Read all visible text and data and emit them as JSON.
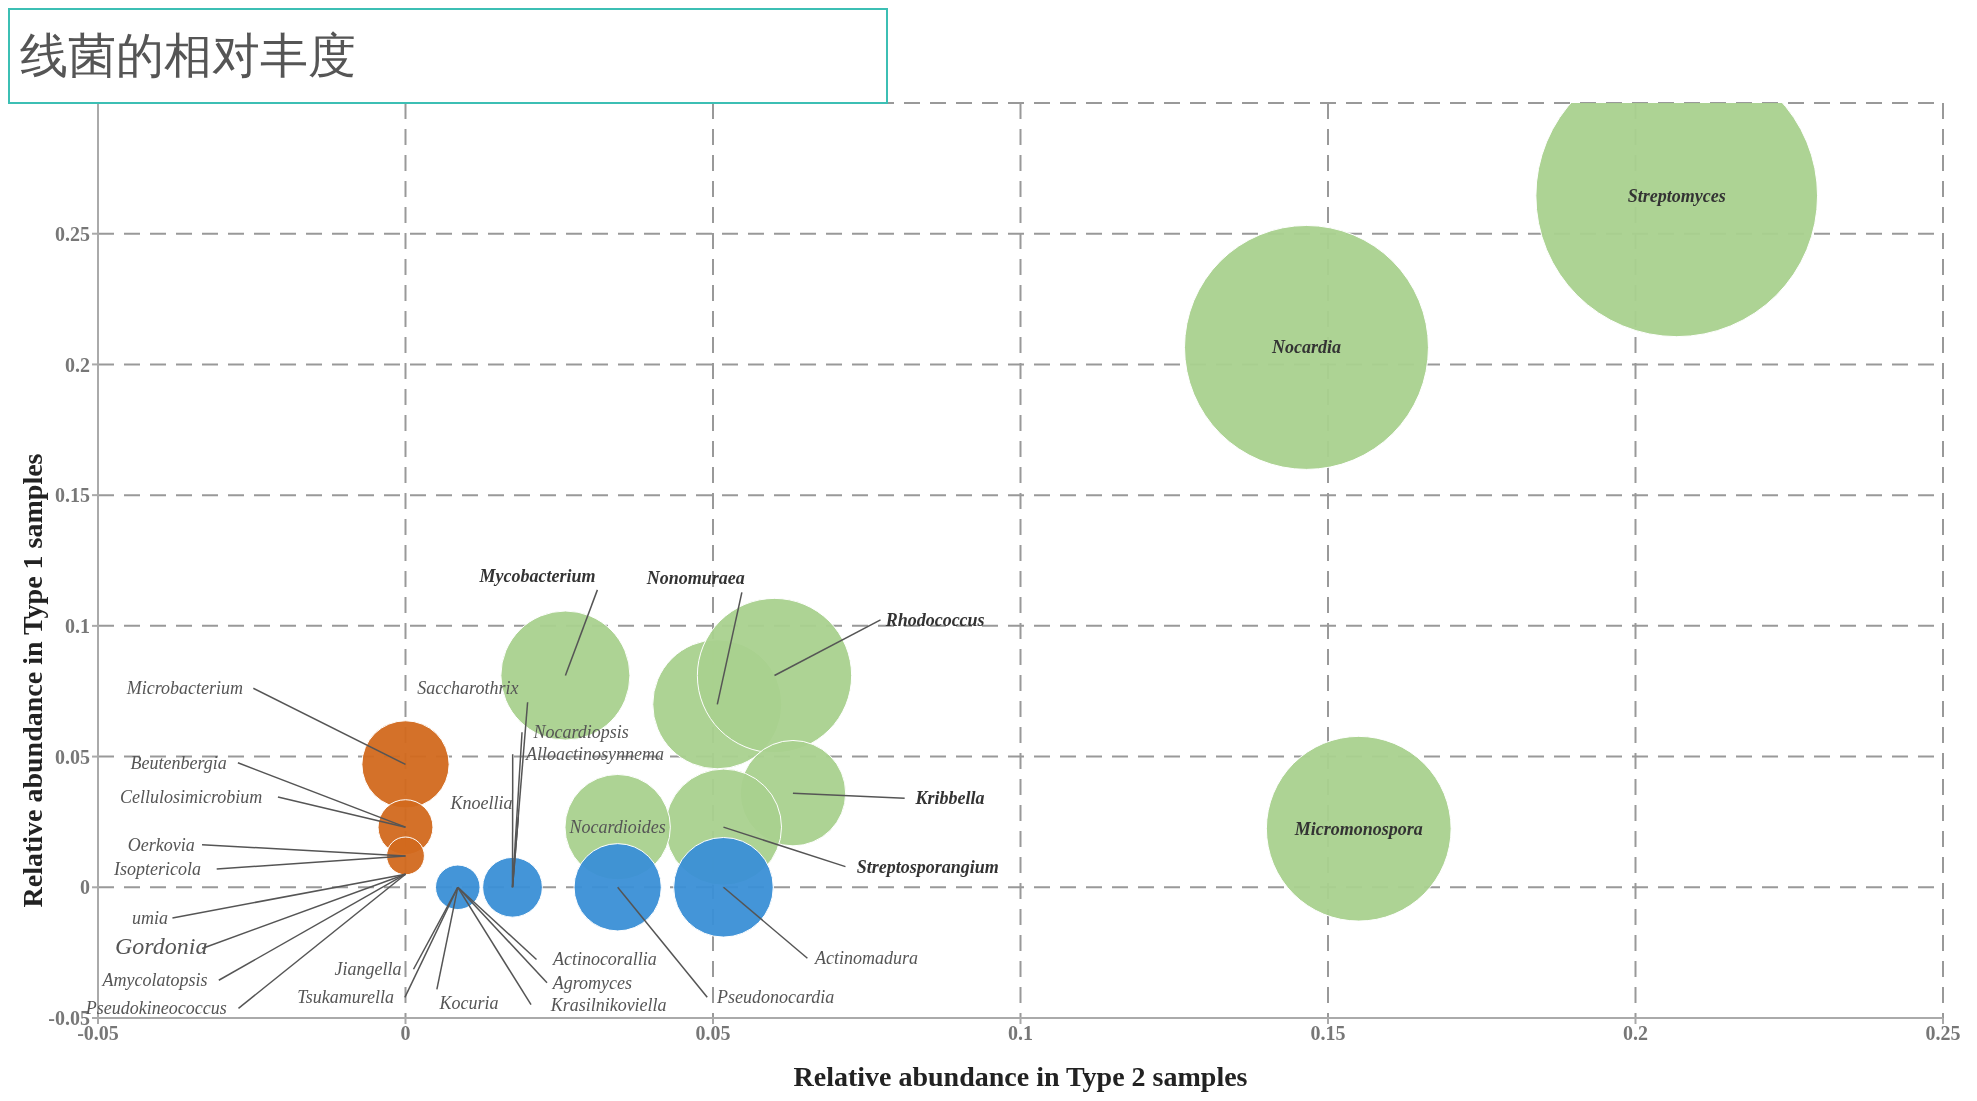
{
  "chart_data": {
    "type": "bubble",
    "title": "线菌的相对丰度",
    "xlabel": "Relative abundance in Type 2 samples",
    "ylabel": "Relative abundance in Type 1 samples",
    "xlim": [
      -0.05,
      0.25
    ],
    "xticks": [
      -0.05,
      0,
      0.05,
      0.1,
      0.15,
      0.2,
      0.25
    ],
    "ylim": [
      -0.05,
      0.3
    ],
    "yticks": [
      -0.05,
      0,
      0.05,
      0.1,
      0.15,
      0.2,
      0.25,
      {
        "value": 0.3,
        "label": null
      }
    ],
    "grid": true,
    "series": [
      {
        "color": "#a9d18e",
        "x": [
          0.2067,
          0.1465,
          0.155,
          0.026,
          0.0507,
          0.06,
          0.063,
          0.0517,
          0.0345
        ],
        "values": [
          0.2645,
          0.2065,
          0.0224,
          0.081,
          0.07,
          0.081,
          0.036,
          0.023,
          0.023
        ],
        "sizes": [
          1,
          0.75,
          0.43,
          0.21,
          0.21,
          0.3,
          0.14,
          0.17,
          0.14
        ]
      },
      {
        "color": "#3a8fd6",
        "x": [
          0.0517,
          0.0345,
          0.0174,
          0.0085
        ],
        "values": [
          0,
          0,
          0,
          0
        ],
        "sizes": [
          0.125,
          0.096,
          0.045,
          0.025
        ]
      },
      {
        "color": "#d2691e",
        "x": [
          0,
          0,
          0
        ],
        "values": [
          0.047,
          0.023,
          0.012
        ],
        "sizes": [
          0.096,
          0.038,
          0.018
        ]
      }
    ],
    "annotations": [
      {
        "text": "Streptomyces",
        "x": 0.2067,
        "y": 0.2645
      },
      {
        "text": "Nocardia",
        "x": 0.1465,
        "y": 0.2065
      },
      {
        "text": "Micromonospora",
        "x": 0.155,
        "y": 0.0224
      },
      {
        "text": "Mycobacterium",
        "x": 0.026,
        "y": 0.081
      },
      {
        "text": "Nonomuraea",
        "x": 0.0507,
        "y": 0.07
      },
      {
        "text": "Rhodococcus",
        "x": 0.06,
        "y": 0.081
      },
      {
        "text": "Kribbella",
        "x": 0.063,
        "y": 0.036
      },
      {
        "text": "Streptosporangium",
        "x": 0.0517,
        "y": 0.023
      },
      {
        "text": "Nocardioides",
        "x": 0.0345,
        "y": 0.023
      },
      {
        "text": "Actinomadura",
        "x": 0.0517,
        "y": 0
      },
      {
        "text": "Pseudonocardia",
        "x": 0.0345,
        "y": 0
      },
      {
        "text": "Saccharothrix",
        "x": 0.0174,
        "y": 0
      },
      {
        "text": "Knoellia",
        "x": 0.0174,
        "y": 0
      },
      {
        "text": "Nocardiopsis",
        "x": 0.0174,
        "y": 0
      },
      {
        "text": "Alloactinosynnema",
        "x": 0.0174,
        "y": 0
      },
      {
        "text": "Jiangella",
        "x": 0.0085,
        "y": 0
      },
      {
        "text": "Tsukamurella",
        "x": 0.0085,
        "y": 0
      },
      {
        "text": "Kocuria",
        "x": 0.0085,
        "y": 0
      },
      {
        "text": "Actinocorallia",
        "x": 0.0085,
        "y": 0
      },
      {
        "text": "Agromyces",
        "x": 0.0085,
        "y": 0
      },
      {
        "text": "Krasilnikoviella",
        "x": 0.0085,
        "y": 0
      },
      {
        "text": "Microbacterium",
        "x": 0,
        "y": 0.047
      },
      {
        "text": "Beutenbergia",
        "x": 0,
        "y": 0.023
      },
      {
        "text": "Cellulosimicrobium",
        "x": 0,
        "y": 0.023
      },
      {
        "text": "Oerkovia",
        "x": 0,
        "y": 0.012
      },
      {
        "text": "Isoptericola",
        "x": 0,
        "y": 0.012
      },
      {
        "text": "umia",
        "x": 0,
        "y": 0.005
      },
      {
        "text": "Gordonia",
        "x": 0,
        "y": 0.005
      },
      {
        "text": "Amycolatopsis",
        "x": 0,
        "y": 0.005
      },
      {
        "text": "Pseudokineococcus",
        "x": 0,
        "y": 0.005
      }
    ]
  }
}
